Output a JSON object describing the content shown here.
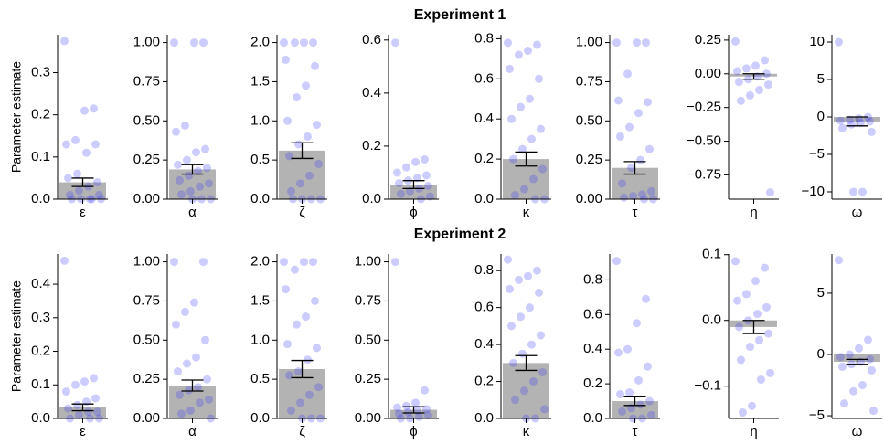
{
  "chart_data": [
    {
      "type": "bar",
      "title": "Experiment 1",
      "ylabel": "Parameter estimate",
      "categories": [
        "ε"
      ],
      "values": [
        0.04
      ],
      "errors": [
        0.01
      ],
      "points": [
        0.375,
        0.215,
        0.21,
        0.14,
        0.13,
        0.13,
        0.11,
        0.06,
        0.05,
        0.04,
        0.03,
        0.02,
        0.01,
        0.01,
        0,
        0,
        0,
        0,
        0
      ],
      "ylim": [
        0,
        0.39
      ],
      "yticks": [
        {
          "value": 0,
          "label": "0.0"
        },
        0.1,
        0.2,
        0.3
      ],
      "color": "#b3b3b3",
      "point_color": "#3333ff"
    },
    {
      "type": "bar",
      "categories": [
        "α"
      ],
      "values": [
        0.19
      ],
      "errors": [
        0.03
      ],
      "points": [
        1,
        1,
        1,
        0.47,
        0.43,
        0.32,
        0.3,
        0.25,
        0.22,
        0.2,
        0.18,
        0.15,
        0.12,
        0.1,
        0.08,
        0.05,
        0.03,
        0,
        0,
        0
      ],
      "ylim": [
        0,
        1.05
      ],
      "yticks": [
        {
          "value": 0,
          "label": "0.00"
        },
        0.25,
        {
          "value": 0.5,
          "label": "0.50"
        },
        0.75,
        {
          "value": 1,
          "label": "1.00"
        }
      ],
      "color": "#b3b3b3",
      "point_color": "#3333ff"
    },
    {
      "type": "bar",
      "categories": [
        "ζ"
      ],
      "values": [
        0.62
      ],
      "errors": [
        0.1
      ],
      "points": [
        2,
        2,
        2,
        2,
        1.78,
        1.7,
        1.45,
        1.3,
        1.0,
        0.95,
        0.8,
        0.7,
        0.55,
        0.45,
        0.3,
        0.2,
        0.1,
        0,
        0,
        0,
        0
      ],
      "ylim": [
        0,
        2.1
      ],
      "yticks": [
        {
          "value": 0,
          "label": "0.0"
        },
        0.5,
        {
          "value": 1,
          "label": "1.0"
        },
        1.5,
        {
          "value": 2,
          "label": "2.0"
        }
      ],
      "color": "#b3b3b3",
      "point_color": "#3333ff"
    },
    {
      "type": "bar",
      "categories": [
        "ϕ"
      ],
      "values": [
        0.055
      ],
      "errors": [
        0.015
      ],
      "points": [
        0.59,
        0.15,
        0.14,
        0.12,
        0.1,
        0.09,
        0.08,
        0.07,
        0.06,
        0.05,
        0.04,
        0.03,
        0.02,
        0.01,
        0
      ],
      "ylim": [
        0,
        0.62
      ],
      "yticks": [
        {
          "value": 0,
          "label": "0.0"
        },
        0.2,
        0.4,
        0.6
      ],
      "color": "#b3b3b3",
      "point_color": "#3333ff"
    },
    {
      "type": "bar",
      "categories": [
        "κ"
      ],
      "values": [
        0.2
      ],
      "errors": [
        0.035
      ],
      "points": [
        0.78,
        0.77,
        0.74,
        0.72,
        0.65,
        0.6,
        0.5,
        0.46,
        0.4,
        0.35,
        0.3,
        0.25,
        0.2,
        0.15,
        0.1,
        0.05,
        0.02,
        0,
        0
      ],
      "ylim": [
        0,
        0.82
      ],
      "yticks": [
        {
          "value": 0,
          "label": "0.0"
        },
        0.2,
        0.4,
        0.6,
        0.8
      ],
      "color": "#b3b3b3",
      "point_color": "#3333ff"
    },
    {
      "type": "bar",
      "categories": [
        "τ"
      ],
      "values": [
        0.2
      ],
      "errors": [
        0.04
      ],
      "points": [
        1,
        1,
        1,
        0.8,
        0.63,
        0.62,
        0.55,
        0.46,
        0.4,
        0.32,
        0.25,
        0.2,
        0.1,
        0.05,
        0.03,
        0.02,
        0.01,
        0,
        0
      ],
      "ylim": [
        0,
        1.05
      ],
      "yticks": [
        {
          "value": 0,
          "label": "0.00"
        },
        0.25,
        {
          "value": 0.5,
          "label": "0.50"
        },
        0.75,
        {
          "value": 1,
          "label": "1.00"
        }
      ],
      "color": "#b3b3b3",
      "point_color": "#3333ff"
    },
    {
      "type": "bar",
      "categories": [
        "η"
      ],
      "values": [
        -0.02
      ],
      "errors": [
        0.02
      ],
      "points": [
        0.24,
        0.1,
        0.06,
        0.04,
        0.02,
        0,
        -0.02,
        -0.04,
        -0.06,
        -0.08,
        -0.12,
        -0.16,
        -0.2,
        -0.88
      ],
      "ylim": [
        -0.93,
        0.29
      ],
      "yticks": [
        {
          "value": -0.75,
          "label": "−0.75"
        },
        {
          "value": -0.5,
          "label": "−0.50"
        },
        {
          "value": -0.25,
          "label": "−0.25"
        },
        {
          "value": 0,
          "label": "0.00"
        },
        0.25
      ],
      "color": "#b3b3b3",
      "point_color": "#3333ff"
    },
    {
      "type": "bar",
      "categories": [
        "ω"
      ],
      "values": [
        -0.6
      ],
      "errors": [
        0.6
      ],
      "points": [
        10,
        0,
        -0.2,
        -0.4,
        -0.5,
        -0.6,
        -0.8,
        -1,
        -1.5,
        -2,
        -10,
        -10
      ],
      "ylim": [
        -10.98,
        10.98
      ],
      "yticks": [
        {
          "value": -10,
          "label": "−10"
        },
        {
          "value": -5,
          "label": "−5"
        },
        0,
        5,
        10
      ],
      "color": "#b3b3b3",
      "point_color": "#3333ff"
    },
    {
      "type": "bar",
      "title": "Experiment 2",
      "ylabel": "Parameter estimate",
      "categories": [
        "ε"
      ],
      "values": [
        0.033
      ],
      "errors": [
        0.01
      ],
      "points": [
        0.47,
        0.12,
        0.11,
        0.1,
        0.08,
        0.06,
        0.05,
        0.04,
        0.03,
        0.02,
        0.02,
        0.01,
        0,
        0,
        0
      ],
      "ylim": [
        0,
        0.49
      ],
      "yticks": [
        {
          "value": 0,
          "label": "0.0"
        },
        0.1,
        0.2,
        0.3,
        0.4
      ],
      "color": "#b3b3b3",
      "point_color": "#3333ff"
    },
    {
      "type": "bar",
      "categories": [
        "α"
      ],
      "values": [
        0.21
      ],
      "errors": [
        0.035
      ],
      "points": [
        1,
        1,
        0.74,
        0.68,
        0.6,
        0.5,
        0.39,
        0.35,
        0.3,
        0.25,
        0.2,
        0.18,
        0.15,
        0.12,
        0.1,
        0.05,
        0.03,
        0
      ],
      "ylim": [
        0,
        1.05
      ],
      "yticks": [
        {
          "value": 0,
          "label": "0.00"
        },
        0.25,
        {
          "value": 0.5,
          "label": "0.50"
        },
        0.75,
        {
          "value": 1,
          "label": "1.00"
        }
      ],
      "color": "#b3b3b3",
      "point_color": "#3333ff"
    },
    {
      "type": "bar",
      "categories": [
        "ζ"
      ],
      "values": [
        0.63
      ],
      "errors": [
        0.11
      ],
      "points": [
        2,
        2,
        2,
        1.9,
        1.65,
        1.5,
        1.3,
        1.2,
        0.95,
        0.9,
        0.75,
        0.6,
        0.55,
        0.4,
        0.3,
        0.2,
        0.1,
        0,
        0,
        0
      ],
      "ylim": [
        0,
        2.1
      ],
      "yticks": [
        {
          "value": 0,
          "label": "0.0"
        },
        0.5,
        {
          "value": 1,
          "label": "1.0"
        },
        1.5,
        {
          "value": 2,
          "label": "2.0"
        }
      ],
      "color": "#b3b3b3",
      "point_color": "#3333ff"
    },
    {
      "type": "bar",
      "categories": [
        "ϕ"
      ],
      "values": [
        0.055
      ],
      "errors": [
        0.02
      ],
      "points": [
        1,
        0.18,
        0.1,
        0.08,
        0.07,
        0.06,
        0.05,
        0.04,
        0.03,
        0.02,
        0.01,
        0,
        0
      ],
      "ylim": [
        0,
        1.05
      ],
      "yticks": [
        {
          "value": 0,
          "label": "0.00"
        },
        0.25,
        {
          "value": 0.5,
          "label": "0.50"
        },
        0.75,
        {
          "value": 1,
          "label": "1.00"
        }
      ],
      "color": "#b3b3b3",
      "point_color": "#3333ff"
    },
    {
      "type": "bar",
      "categories": [
        "κ"
      ],
      "values": [
        0.3
      ],
      "errors": [
        0.04
      ],
      "points": [
        0.86,
        0.8,
        0.77,
        0.75,
        0.7,
        0.68,
        0.6,
        0.55,
        0.5,
        0.45,
        0.4,
        0.35,
        0.3,
        0.25,
        0.2,
        0.15,
        0.1,
        0.05,
        0,
        0
      ],
      "ylim": [
        0,
        0.89
      ],
      "yticks": [
        {
          "value": 0,
          "label": "0.0"
        },
        0.2,
        0.4,
        0.6,
        0.8
      ],
      "color": "#b3b3b3",
      "point_color": "#3333ff"
    },
    {
      "type": "bar",
      "categories": [
        "τ"
      ],
      "values": [
        0.1
      ],
      "errors": [
        0.025
      ],
      "points": [
        0.91,
        0.69,
        0.55,
        0.4,
        0.38,
        0.3,
        0.22,
        0.15,
        0.14,
        0.1,
        0.08,
        0.06,
        0.04,
        0.02,
        0,
        0
      ],
      "ylim": [
        0,
        0.95
      ],
      "yticks": [
        {
          "value": 0,
          "label": "0.0"
        },
        0.2,
        0.4,
        0.6,
        0.8
      ],
      "color": "#b3b3b3",
      "point_color": "#3333ff"
    },
    {
      "type": "bar",
      "categories": [
        "η"
      ],
      "values": [
        -0.01
      ],
      "errors": [
        0.01
      ],
      "points": [
        0.09,
        0.08,
        0.06,
        0.04,
        0.03,
        0.02,
        0.01,
        0,
        -0.01,
        -0.02,
        -0.03,
        -0.04,
        -0.06,
        -0.08,
        -0.09,
        -0.13,
        -0.14
      ],
      "ylim": [
        -0.149,
        0.101
      ],
      "yticks": [
        {
          "value": -0.1,
          "label": "−0.1"
        },
        {
          "value": 0,
          "label": "0.0"
        },
        0.1
      ],
      "color": "#b3b3b3",
      "point_color": "#3333ff"
    },
    {
      "type": "bar",
      "categories": [
        "ω"
      ],
      "values": [
        -0.6
      ],
      "errors": [
        0.2
      ],
      "points": [
        7.7,
        1.2,
        0.5,
        0,
        -0.2,
        -0.4,
        -0.6,
        -0.8,
        -1,
        -1.3,
        -2.5,
        -3,
        -4,
        -4.6
      ],
      "ylim": [
        -5.22,
        8.2
      ],
      "yticks": [
        {
          "value": -5,
          "label": "−5"
        },
        0,
        5
      ],
      "color": "#b3b3b3",
      "point_color": "#3333ff"
    }
  ]
}
